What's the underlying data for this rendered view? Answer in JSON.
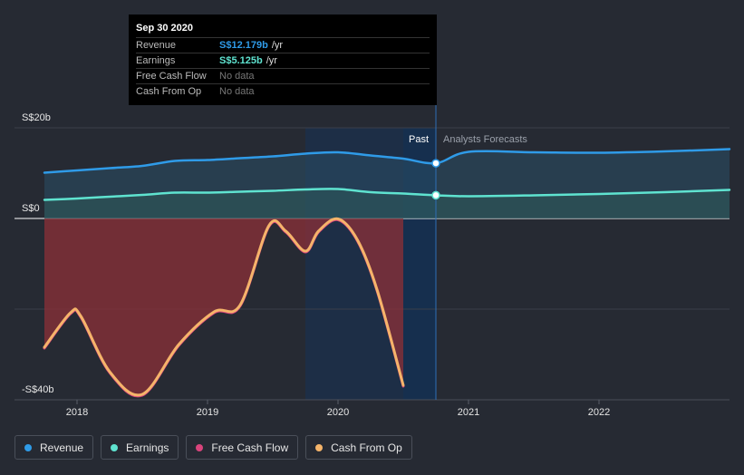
{
  "chart_data": {
    "type": "line",
    "y_axis_labels": [
      "S$20b",
      "S$0",
      "-S$40b"
    ],
    "ylim": [
      -40,
      20
    ],
    "x_ticks": [
      "2018",
      "2019",
      "2020",
      "2021",
      "2022"
    ],
    "past_label": "Past",
    "forecast_label": "Analysts Forecasts",
    "series": [
      {
        "name": "Revenue",
        "color": "#2f9be8",
        "x": [
          2017.75,
          2018.0,
          2018.25,
          2018.5,
          2018.75,
          2019.0,
          2019.25,
          2019.5,
          2019.75,
          2020.0,
          2020.25,
          2020.5,
          2020.75,
          2021.0,
          2021.5,
          2022.0,
          2022.5,
          2023.0
        ],
        "values": [
          10.1,
          10.6,
          11.1,
          11.6,
          12.7,
          12.9,
          13.3,
          13.7,
          14.3,
          14.6,
          13.9,
          13.2,
          12.2,
          14.7,
          14.6,
          14.5,
          14.8,
          15.3
        ]
      },
      {
        "name": "Earnings",
        "color": "#5fe3d0",
        "x": [
          2017.75,
          2018.0,
          2018.25,
          2018.5,
          2018.75,
          2019.0,
          2019.25,
          2019.5,
          2019.75,
          2020.0,
          2020.25,
          2020.5,
          2020.75,
          2021.0,
          2021.5,
          2022.0,
          2022.5,
          2023.0
        ],
        "values": [
          4.1,
          4.4,
          4.8,
          5.2,
          5.7,
          5.7,
          5.9,
          6.1,
          6.4,
          6.5,
          5.8,
          5.5,
          5.1,
          4.9,
          5.1,
          5.4,
          5.8,
          6.3
        ]
      },
      {
        "name": "Free Cash Flow",
        "color": "#d9447c",
        "x": [
          2017.75,
          2017.95,
          2018.03,
          2018.25,
          2018.5,
          2018.78,
          2019.05,
          2019.25,
          2019.47,
          2019.6,
          2019.75,
          2019.85,
          2020.0,
          2020.15,
          2020.3,
          2020.5
        ],
        "values": [
          -28.6,
          -21.0,
          -21.8,
          -34.0,
          -39.0,
          -28.0,
          -20.8,
          -19.3,
          -1.8,
          -3.0,
          -7.4,
          -3.0,
          -0.3,
          -5.0,
          -16.0,
          -37.0
        ]
      },
      {
        "name": "Cash From Op",
        "color": "#f5b46a",
        "x": [
          2017.75,
          2017.95,
          2018.03,
          2018.25,
          2018.5,
          2018.78,
          2019.05,
          2019.25,
          2019.47,
          2019.6,
          2019.75,
          2019.85,
          2020.0,
          2020.15,
          2020.3,
          2020.5
        ],
        "values": [
          -28.4,
          -20.8,
          -21.6,
          -33.8,
          -38.8,
          -27.8,
          -20.6,
          -19.1,
          -1.6,
          -2.8,
          -7.2,
          -2.8,
          -0.1,
          -4.8,
          -15.8,
          -36.8
        ]
      }
    ],
    "highlight": {
      "x": 2020.75,
      "revenue": 12.179,
      "earnings": 5.125
    }
  },
  "tooltip": {
    "date": "Sep 30 2020",
    "rows": [
      {
        "label": "Revenue",
        "value": "S$12.179b",
        "unit": "/yr"
      },
      {
        "label": "Earnings",
        "value": "S$5.125b",
        "unit": "/yr"
      },
      {
        "label": "Free Cash Flow",
        "value": "No data"
      },
      {
        "label": "Cash From Op",
        "value": "No data"
      }
    ]
  },
  "legend": [
    {
      "label": "Revenue",
      "color": "#2f9be8"
    },
    {
      "label": "Earnings",
      "color": "#5fe3d0"
    },
    {
      "label": "Free Cash Flow",
      "color": "#d9447c"
    },
    {
      "label": "Cash From Op",
      "color": "#f5b46a"
    }
  ]
}
